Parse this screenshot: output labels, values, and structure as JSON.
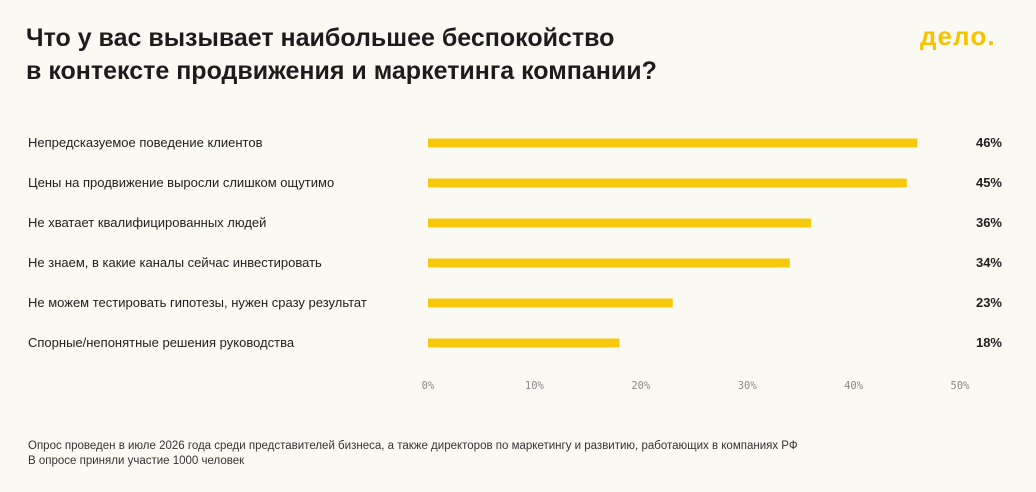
{
  "title_lines": [
    "Что у вас вызывает наибольшее беспокойство",
    "в контексте продвижения и маркетинга компании?"
  ],
  "logo": {
    "text": "делo.",
    "color": "#f5c400"
  },
  "colors": {
    "bar": "#f7c90d",
    "background": "#faf9f2"
  },
  "chart_data": {
    "type": "bar",
    "orientation": "horizontal",
    "title": "Что у вас вызывает наибольшее беспокойство в контексте продвижения и маркетинга компании?",
    "categories": [
      "Непредсказуемое поведение клиентов",
      "Цены на продвижение выросли слишком ощутимо",
      "Не хватает квалифицированных людей",
      "Не знаем, в какие каналы сейчас инвестировать",
      "Не можем тестировать гипотезы, нужен сразу результат",
      "Спорные/непонятные решения руководства"
    ],
    "values": [
      46,
      45,
      36,
      34,
      23,
      18
    ],
    "value_labels": [
      "46%",
      "45%",
      "36%",
      "34%",
      "23%",
      "18%"
    ],
    "xlim": [
      0,
      50
    ],
    "xticks": [
      0,
      10,
      20,
      30,
      40,
      50
    ],
    "xtick_labels": [
      "0%",
      "10%",
      "20%",
      "30%",
      "40%",
      "50%"
    ],
    "grid": false,
    "legend": "none"
  },
  "footnote": [
    "Опрос проведен в июле 2026 года среди представителей бизнеса, а также директоров по маркетингу и развитию, работающих в компаниях РФ",
    "В опросе приняли участие 1000 человек"
  ]
}
